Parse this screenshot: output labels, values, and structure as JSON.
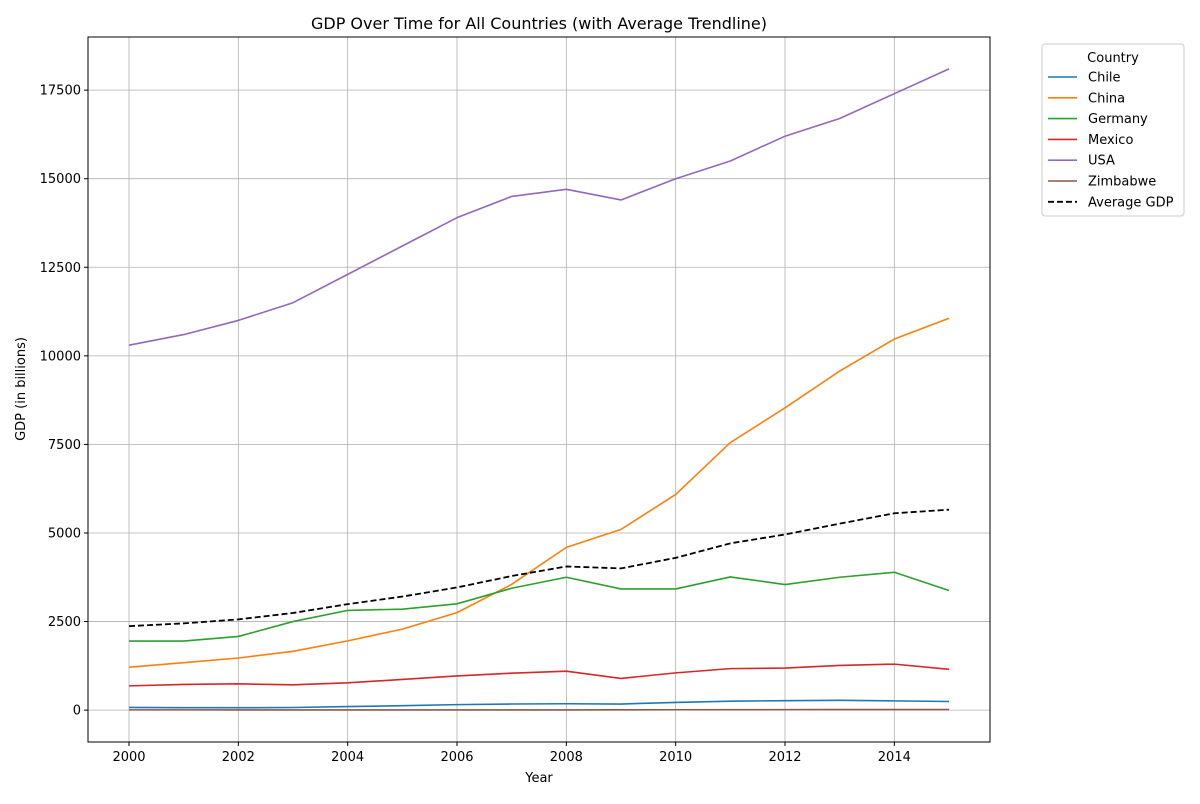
{
  "chart_data": {
    "type": "line",
    "title": "GDP Over Time for All Countries (with Average Trendline)",
    "xlabel": "Year",
    "ylabel": "GDP (in billions)",
    "xlim": [
      1999.25,
      2015.75
    ],
    "ylim": [
      -900,
      19000
    ],
    "xticks": [
      2000,
      2002,
      2004,
      2006,
      2008,
      2010,
      2012,
      2014
    ],
    "yticks": [
      0,
      2500,
      5000,
      7500,
      10000,
      12500,
      15000,
      17500
    ],
    "grid": true,
    "legend": {
      "title": "Country",
      "placement": "outside-top-right"
    },
    "x": [
      2000,
      2001,
      2002,
      2003,
      2004,
      2005,
      2006,
      2007,
      2008,
      2009,
      2010,
      2011,
      2012,
      2013,
      2014,
      2015
    ],
    "series": [
      {
        "name": "Chile",
        "color": "#1f77b4",
        "style": "solid",
        "values": [
          77,
          69,
          68,
          74,
          100,
          124,
          155,
          173,
          180,
          172,
          218,
          252,
          267,
          278,
          261,
          243
        ]
      },
      {
        "name": "China",
        "color": "#ff7f0e",
        "style": "solid",
        "values": [
          1211,
          1339,
          1471,
          1660,
          1955,
          2286,
          2752,
          3550,
          4594,
          5102,
          6087,
          7552,
          8532,
          9570,
          10475,
          11061
        ]
      },
      {
        "name": "Germany",
        "color": "#2ca02c",
        "style": "solid",
        "values": [
          1950,
          1950,
          2080,
          2500,
          2815,
          2850,
          3000,
          3440,
          3750,
          3420,
          3420,
          3760,
          3545,
          3750,
          3890,
          3375
        ]
      },
      {
        "name": "Mexico",
        "color": "#d62728",
        "style": "solid",
        "values": [
          684,
          725,
          741,
          713,
          770,
          866,
          966,
          1043,
          1100,
          895,
          1051,
          1171,
          1186,
          1262,
          1298,
          1152
        ]
      },
      {
        "name": "USA",
        "color": "#9467bd",
        "style": "solid",
        "values": [
          10300,
          10600,
          11000,
          11500,
          12300,
          13100,
          13900,
          14500,
          14700,
          14400,
          15000,
          15500,
          16200,
          16700,
          17400,
          18100
        ]
      },
      {
        "name": "Zimbabwe",
        "color": "#8c564b",
        "style": "solid",
        "values": [
          6.7,
          6.8,
          6.3,
          5.7,
          5.8,
          5.8,
          5.4,
          5.3,
          4.4,
          8.2,
          10.1,
          12.1,
          14.1,
          15.5,
          15.9,
          16.3
        ]
      },
      {
        "name": "Average GDP",
        "color": "#000000",
        "style": "dashed",
        "values": [
          2371,
          2448,
          2561,
          2742,
          2991,
          3205,
          3463,
          3785,
          4055,
          4000,
          4298,
          4708,
          4957,
          5264,
          5556,
          5658
        ]
      }
    ]
  }
}
